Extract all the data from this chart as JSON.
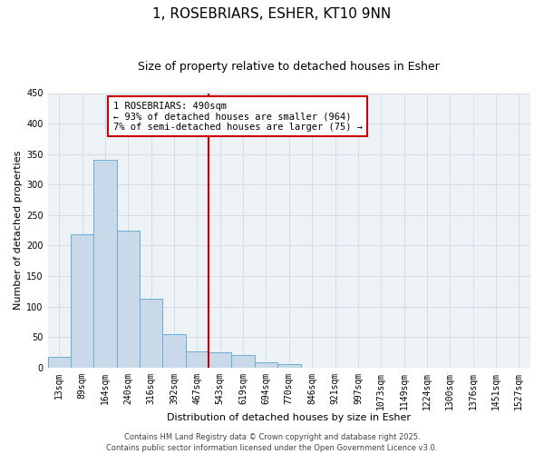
{
  "title": "1, ROSEBRIARS, ESHER, KT10 9NN",
  "subtitle": "Size of property relative to detached houses in Esher",
  "xlabel": "Distribution of detached houses by size in Esher",
  "ylabel": "Number of detached properties",
  "bar_labels": [
    "13sqm",
    "89sqm",
    "164sqm",
    "240sqm",
    "316sqm",
    "392sqm",
    "467sqm",
    "543sqm",
    "619sqm",
    "694sqm",
    "770sqm",
    "846sqm",
    "921sqm",
    "997sqm",
    "1073sqm",
    "1149sqm",
    "1224sqm",
    "1300sqm",
    "1376sqm",
    "1451sqm",
    "1527sqm"
  ],
  "bar_values": [
    18,
    218,
    340,
    225,
    113,
    55,
    27,
    25,
    20,
    8,
    5,
    0,
    0,
    0,
    0,
    0,
    0,
    0,
    0,
    0,
    0
  ],
  "bar_color": "#c9d9ea",
  "bar_edgecolor": "#6baed6",
  "vline_x": 7.0,
  "vline_color": "#cc0000",
  "ylim": [
    0,
    450
  ],
  "yticks": [
    0,
    50,
    100,
    150,
    200,
    250,
    300,
    350,
    400,
    450
  ],
  "annotation_title": "1 ROSEBRIARS: 490sqm",
  "annotation_line1": "← 93% of detached houses are smaller (964)",
  "annotation_line2": "7% of semi-detached houses are larger (75) →",
  "annotation_box_color": "#cc0000",
  "grid_color": "#d4dde6",
  "background_color": "#edf2f7",
  "footer_line1": "Contains HM Land Registry data © Crown copyright and database right 2025.",
  "footer_line2": "Contains public sector information licensed under the Open Government Licence v3.0.",
  "title_fontsize": 11,
  "subtitle_fontsize": 9,
  "axis_label_fontsize": 8,
  "tick_fontsize": 7,
  "annotation_fontsize": 7.5,
  "footer_fontsize": 6
}
